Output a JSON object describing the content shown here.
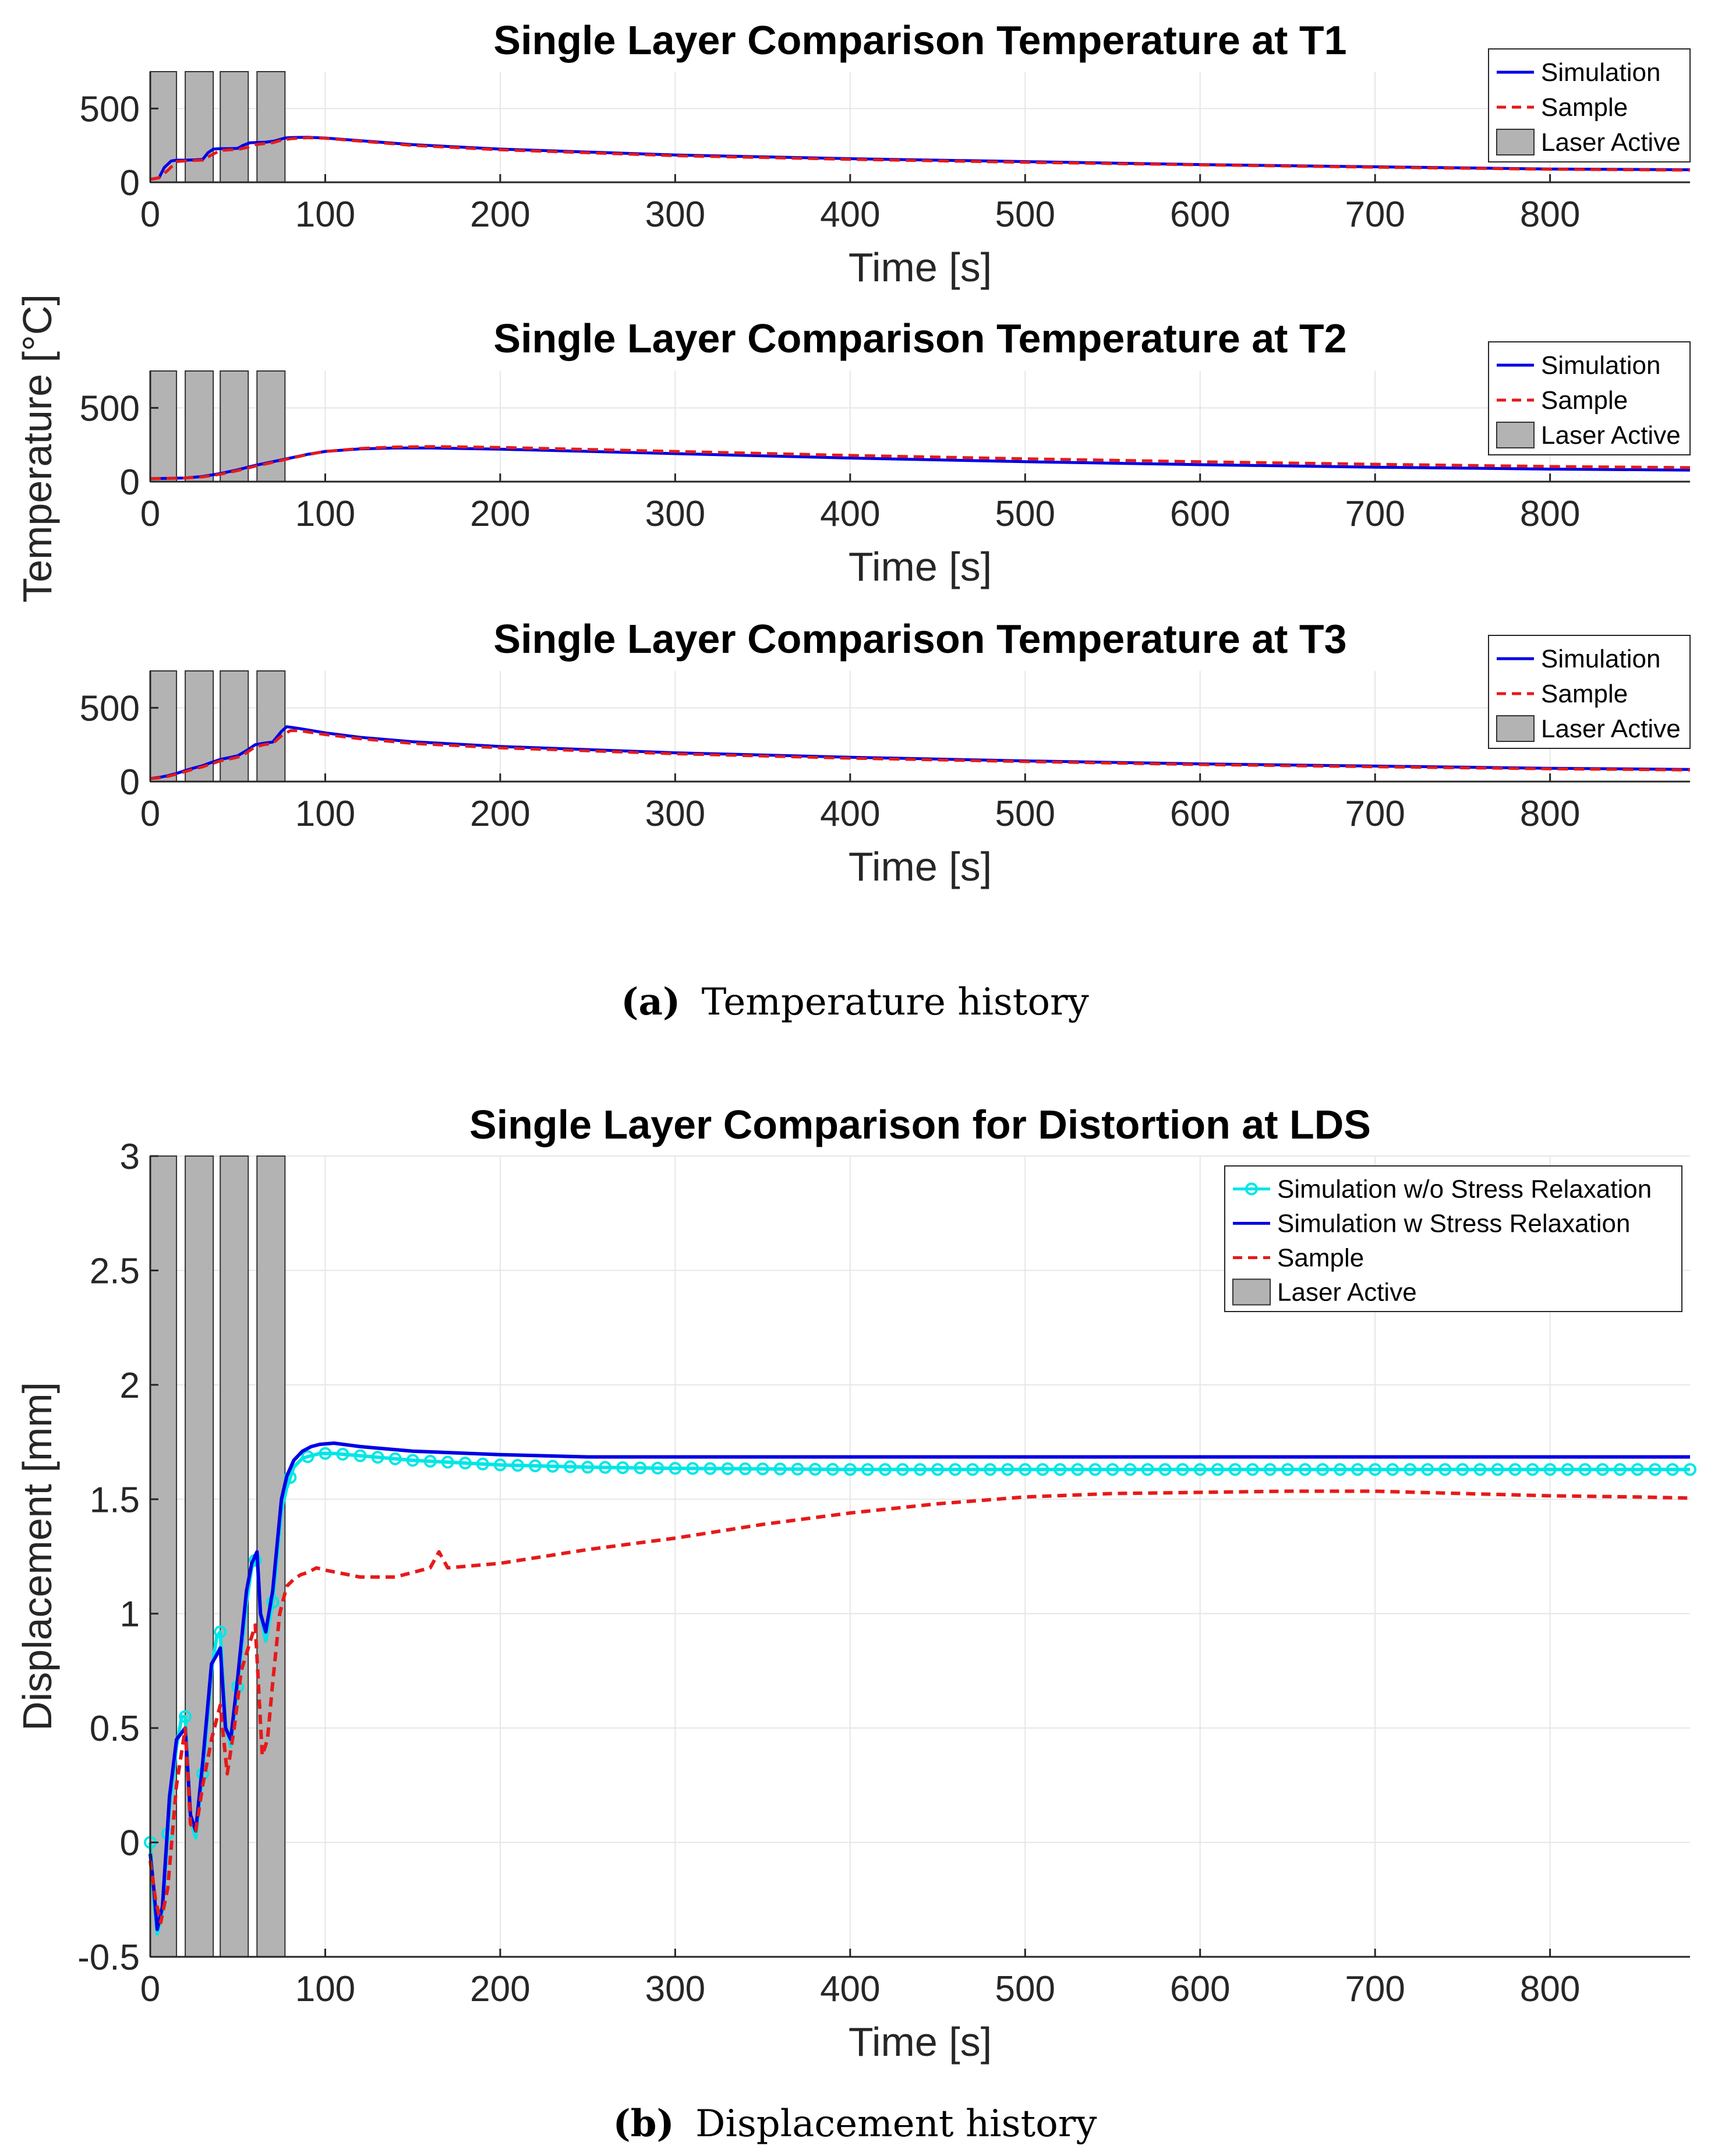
{
  "figure_a": {
    "caption_letter": "(a)",
    "caption_text": "Temperature history",
    "ylabel": "Temperature [°C]"
  },
  "figure_b": {
    "caption_letter": "(b)",
    "caption_text": "Displacement history"
  },
  "chart_data": [
    {
      "id": "t1",
      "type": "line",
      "title": "Single Layer Comparison Temperature at T1",
      "xlabel": "Time [s]",
      "ylabel": "",
      "xlim": [
        0,
        880
      ],
      "ylim": [
        0,
        750
      ],
      "xticks": [
        0,
        100,
        200,
        300,
        400,
        500,
        600,
        700,
        800
      ],
      "yticks": [
        0,
        500
      ],
      "grid": true,
      "legend_position": "top-right",
      "laser_active": [
        [
          0,
          15
        ],
        [
          20,
          36
        ],
        [
          40,
          56
        ],
        [
          61,
          77
        ]
      ],
      "legend": [
        "Simulation",
        "Sample",
        "Laser Active"
      ],
      "series": [
        {
          "name": "Simulation",
          "color": "#0000e6",
          "style": "solid",
          "x": [
            0,
            5,
            8,
            12,
            15,
            20,
            25,
            30,
            33,
            36,
            40,
            45,
            50,
            53,
            57,
            61,
            66,
            71,
            74,
            77,
            80,
            90,
            100,
            150,
            200,
            300,
            400,
            500,
            600,
            700,
            800,
            880
          ],
          "y": [
            20,
            30,
            100,
            145,
            150,
            150,
            152,
            155,
            200,
            225,
            228,
            228,
            230,
            250,
            268,
            270,
            272,
            280,
            290,
            300,
            303,
            305,
            300,
            255,
            225,
            185,
            160,
            140,
            120,
            105,
            90,
            85
          ]
        },
        {
          "name": "Sample",
          "color": "#e61a1a",
          "style": "dashed",
          "x": [
            0,
            5,
            10,
            15,
            20,
            25,
            30,
            35,
            40,
            45,
            50,
            55,
            60,
            65,
            70,
            75,
            80,
            90,
            100,
            150,
            200,
            300,
            400,
            500,
            600,
            700,
            800,
            880
          ],
          "y": [
            20,
            30,
            80,
            140,
            145,
            148,
            150,
            185,
            215,
            220,
            222,
            235,
            255,
            262,
            268,
            285,
            295,
            302,
            298,
            250,
            220,
            180,
            155,
            135,
            118,
            102,
            88,
            82
          ]
        }
      ]
    },
    {
      "id": "t2",
      "type": "line",
      "title": "Single Layer Comparison Temperature at T2",
      "xlabel": "Time [s]",
      "ylabel": "",
      "xlim": [
        0,
        880
      ],
      "ylim": [
        0,
        750
      ],
      "xticks": [
        0,
        100,
        200,
        300,
        400,
        500,
        600,
        700,
        800
      ],
      "yticks": [
        0,
        500
      ],
      "grid": true,
      "legend_position": "top-right",
      "laser_active": [
        [
          0,
          15
        ],
        [
          20,
          36
        ],
        [
          40,
          56
        ],
        [
          61,
          77
        ]
      ],
      "legend": [
        "Simulation",
        "Sample",
        "Laser Active"
      ],
      "series": [
        {
          "name": "Simulation",
          "color": "#0000e6",
          "style": "solid",
          "x": [
            0,
            10,
            20,
            30,
            40,
            50,
            60,
            70,
            80,
            90,
            100,
            120,
            140,
            160,
            200,
            300,
            400,
            500,
            600,
            700,
            800,
            880
          ],
          "y": [
            20,
            22,
            25,
            35,
            55,
            80,
            110,
            135,
            160,
            185,
            205,
            222,
            228,
            228,
            220,
            190,
            160,
            135,
            115,
            98,
            85,
            78
          ]
        },
        {
          "name": "Sample",
          "color": "#e61a1a",
          "style": "dashed",
          "x": [
            0,
            10,
            20,
            30,
            40,
            50,
            60,
            70,
            80,
            90,
            100,
            120,
            140,
            160,
            200,
            300,
            400,
            500,
            600,
            700,
            800,
            880
          ],
          "y": [
            20,
            22,
            24,
            32,
            50,
            75,
            105,
            130,
            158,
            183,
            205,
            225,
            235,
            238,
            232,
            205,
            178,
            155,
            135,
            118,
            103,
            95
          ]
        }
      ]
    },
    {
      "id": "t3",
      "type": "line",
      "title": "Single Layer Comparison Temperature at T3",
      "xlabel": "Time [s]",
      "ylabel": "",
      "xlim": [
        0,
        880
      ],
      "ylim": [
        0,
        750
      ],
      "xticks": [
        0,
        100,
        200,
        300,
        400,
        500,
        600,
        700,
        800
      ],
      "yticks": [
        0,
        500
      ],
      "grid": true,
      "legend_position": "top-right",
      "laser_active": [
        [
          0,
          15
        ],
        [
          20,
          36
        ],
        [
          40,
          56
        ],
        [
          61,
          77
        ]
      ],
      "legend": [
        "Simulation",
        "Sample",
        "Laser Active"
      ],
      "series": [
        {
          "name": "Simulation",
          "color": "#0000e6",
          "style": "solid",
          "x": [
            0,
            5,
            10,
            15,
            20,
            25,
            30,
            35,
            40,
            45,
            50,
            55,
            60,
            65,
            70,
            75,
            78,
            85,
            100,
            120,
            150,
            200,
            300,
            400,
            500,
            600,
            700,
            800,
            880
          ],
          "y": [
            20,
            28,
            40,
            55,
            75,
            92,
            108,
            130,
            150,
            162,
            175,
            210,
            250,
            260,
            268,
            340,
            372,
            360,
            330,
            300,
            270,
            238,
            195,
            165,
            140,
            120,
            105,
            90,
            82
          ]
        },
        {
          "name": "Sample",
          "color": "#e61a1a",
          "style": "dashed",
          "x": [
            0,
            5,
            10,
            15,
            20,
            25,
            30,
            35,
            40,
            45,
            50,
            55,
            60,
            65,
            70,
            75,
            80,
            85,
            100,
            120,
            150,
            200,
            300,
            400,
            500,
            600,
            700,
            800,
            880
          ],
          "y": [
            20,
            25,
            35,
            50,
            68,
            85,
            100,
            120,
            140,
            152,
            165,
            195,
            235,
            250,
            258,
            310,
            345,
            345,
            318,
            290,
            258,
            228,
            188,
            158,
            135,
            115,
            100,
            86,
            78
          ]
        }
      ]
    },
    {
      "id": "lds",
      "type": "line",
      "title": "Single Layer Comparison for Distortion at LDS",
      "xlabel": "Time [s]",
      "ylabel": "Displacement [mm]",
      "xlim": [
        0,
        880
      ],
      "ylim": [
        -0.5,
        3
      ],
      "xticks": [
        0,
        100,
        200,
        300,
        400,
        500,
        600,
        700,
        800
      ],
      "yticks": [
        -0.5,
        0,
        0.5,
        1,
        1.5,
        2,
        2.5,
        3
      ],
      "grid": true,
      "legend_position": "top-right",
      "laser_active": [
        [
          0,
          15
        ],
        [
          20,
          36
        ],
        [
          40,
          56
        ],
        [
          61,
          77
        ]
      ],
      "legend": [
        "Simulation w/o Stress Relaxation",
        "Simulation w Stress Relaxation",
        "Sample",
        "Laser Active"
      ],
      "series": [
        {
          "name": "Simulation w/o Stress Relaxation",
          "color": "#00e6e6",
          "style": "solid-circle",
          "x": [
            0,
            2,
            4,
            7,
            11,
            15,
            18,
            20,
            23,
            26,
            30,
            35,
            38,
            40,
            43,
            46,
            50,
            55,
            58,
            61,
            63,
            66,
            70,
            75,
            78,
            82,
            87,
            92,
            97,
            105,
            120,
            150,
            200,
            250,
            300,
            400,
            500,
            600,
            700,
            800,
            880
          ],
          "y": [
            0.0,
            -0.25,
            -0.4,
            -0.3,
            0.15,
            0.42,
            0.55,
            0.55,
            0.1,
            0.02,
            0.3,
            0.75,
            0.9,
            0.92,
            0.52,
            0.42,
            0.68,
            1.05,
            1.2,
            1.25,
            1.0,
            0.88,
            1.05,
            1.45,
            1.55,
            1.64,
            1.68,
            1.69,
            1.7,
            1.7,
            1.69,
            1.67,
            1.65,
            1.64,
            1.635,
            1.63,
            1.63,
            1.63,
            1.63,
            1.63,
            1.63
          ]
        },
        {
          "name": "Simulation w Stress Relaxation",
          "color": "#0000e6",
          "style": "solid",
          "x": [
            0,
            2,
            4,
            7,
            11,
            15,
            18,
            20,
            23,
            26,
            30,
            35,
            38,
            40,
            43,
            46,
            50,
            55,
            58,
            61,
            63,
            66,
            70,
            75,
            78,
            82,
            87,
            92,
            97,
            105,
            120,
            150,
            200,
            250,
            300,
            400,
            500,
            600,
            700,
            800,
            880
          ],
          "y": [
            -0.05,
            -0.2,
            -0.38,
            -0.28,
            0.2,
            0.45,
            0.48,
            0.5,
            0.12,
            0.05,
            0.35,
            0.78,
            0.82,
            0.85,
            0.5,
            0.45,
            0.72,
            1.1,
            1.22,
            1.27,
            1.0,
            0.92,
            1.1,
            1.5,
            1.6,
            1.67,
            1.71,
            1.73,
            1.74,
            1.745,
            1.73,
            1.71,
            1.695,
            1.685,
            1.685,
            1.685,
            1.685,
            1.685,
            1.685,
            1.685,
            1.685
          ]
        },
        {
          "name": "Sample",
          "color": "#e61a1a",
          "style": "dashed",
          "x": [
            0,
            3,
            6,
            10,
            15,
            20,
            23,
            26,
            30,
            35,
            40,
            44,
            48,
            52,
            56,
            60,
            64,
            67,
            70,
            74,
            78,
            82,
            86,
            90,
            95,
            100,
            120,
            140,
            160,
            165,
            170,
            200,
            250,
            300,
            350,
            400,
            450,
            500,
            550,
            600,
            650,
            700,
            750,
            800,
            850,
            880
          ],
          "y": [
            -0.08,
            -0.25,
            -0.35,
            -0.2,
            0.25,
            0.5,
            0.08,
            0.05,
            0.25,
            0.45,
            0.6,
            0.3,
            0.5,
            0.75,
            0.85,
            0.95,
            0.38,
            0.45,
            0.7,
            1.0,
            1.12,
            1.15,
            1.17,
            1.18,
            1.2,
            1.19,
            1.16,
            1.16,
            1.2,
            1.27,
            1.2,
            1.22,
            1.28,
            1.33,
            1.39,
            1.44,
            1.48,
            1.51,
            1.525,
            1.53,
            1.535,
            1.535,
            1.525,
            1.515,
            1.51,
            1.505
          ]
        }
      ]
    }
  ]
}
